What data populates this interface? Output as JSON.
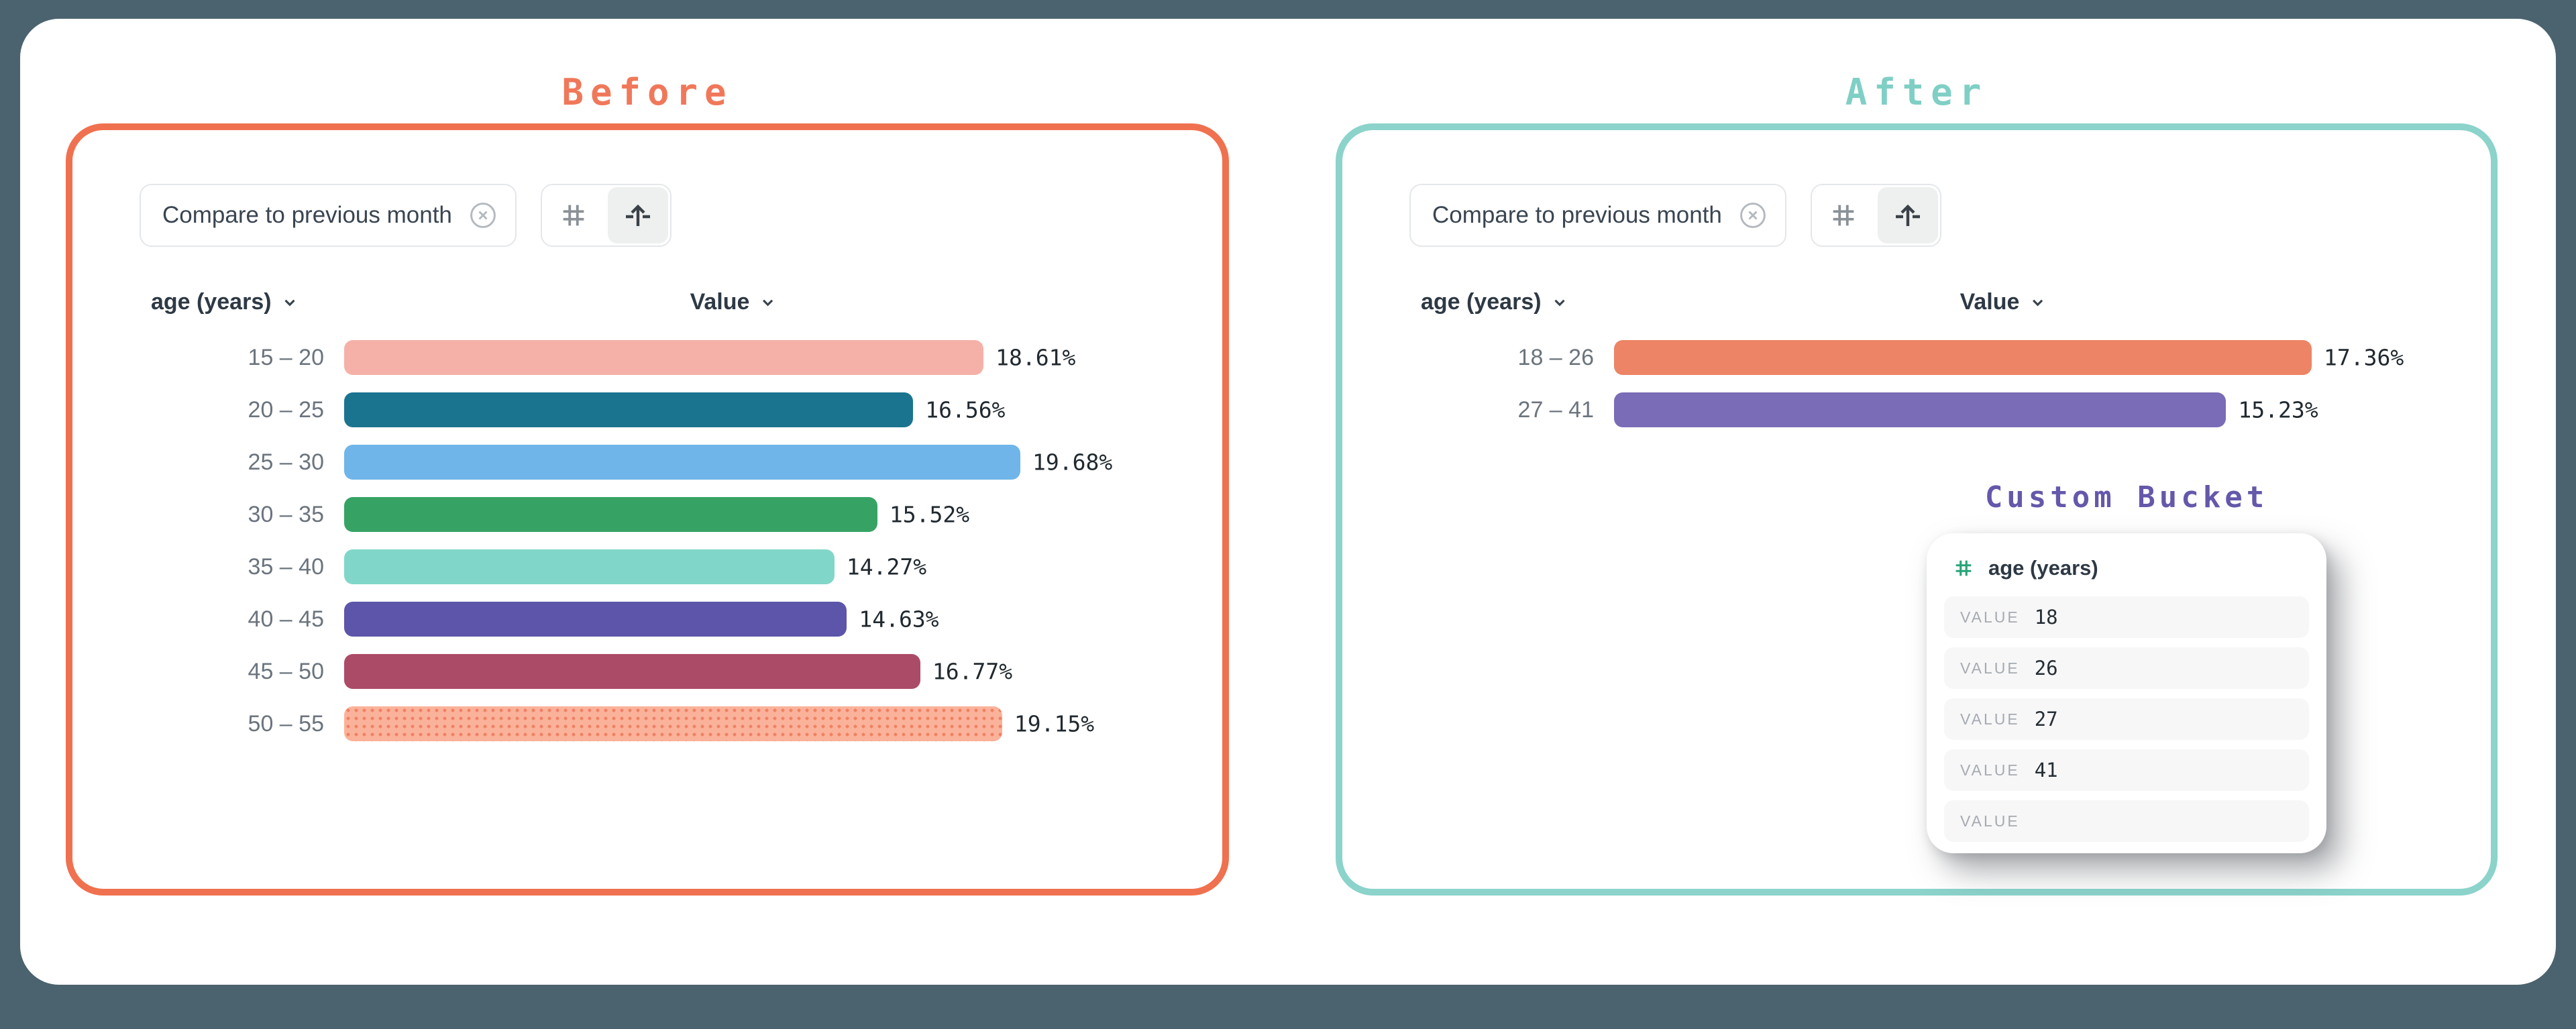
{
  "page": {
    "background": "#4B636E",
    "surface": "#FFFFFF"
  },
  "before": {
    "title": "Before",
    "accent": "#F0714F",
    "filter_chip": {
      "label": "Compare to previous month",
      "close_icon": "x-circle-icon"
    },
    "toolbar": {
      "buttons": [
        {
          "icon": "hash-grid-icon",
          "selected": false
        },
        {
          "icon": "pull-up-arrow-icon",
          "selected": true
        }
      ]
    },
    "columns": {
      "dimension": "age (years)",
      "measure": "Value"
    },
    "axis_max": 19.68,
    "rows": [
      {
        "range": "15 – 20",
        "value": 18.61,
        "value_label": "18.61%",
        "color": "#F5B1A8"
      },
      {
        "range": "20 – 25",
        "value": 16.56,
        "value_label": "16.56%",
        "color": "#1A7490"
      },
      {
        "range": "25 – 30",
        "value": 19.68,
        "value_label": "19.68%",
        "color": "#6FB5E9"
      },
      {
        "range": "30 – 35",
        "value": 15.52,
        "value_label": "15.52%",
        "color": "#36A365"
      },
      {
        "range": "35 – 40",
        "value": 14.27,
        "value_label": "14.27%",
        "color": "#80D7C9"
      },
      {
        "range": "40 – 45",
        "value": 14.63,
        "value_label": "14.63%",
        "color": "#5C55A9"
      },
      {
        "range": "45 – 50",
        "value": 16.77,
        "value_label": "16.77%",
        "color": "#AC4B67"
      },
      {
        "range": "50 – 55",
        "value": 19.15,
        "value_label": "19.15%",
        "color": "#FBB29A",
        "pattern": true
      }
    ]
  },
  "after": {
    "title": "After",
    "accent": "#8BD3CB",
    "filter_chip": {
      "label": "Compare to previous month",
      "close_icon": "x-circle-icon"
    },
    "toolbar": {
      "buttons": [
        {
          "icon": "hash-grid-icon",
          "selected": false
        },
        {
          "icon": "pull-up-arrow-icon",
          "selected": true
        }
      ]
    },
    "columns": {
      "dimension": "age (years)",
      "measure": "Value"
    },
    "axis_max": 17.36,
    "rows": [
      {
        "range": "18 – 26",
        "value": 17.36,
        "value_label": "17.36%",
        "color": "#EC8465"
      },
      {
        "range": "27 – 41",
        "value": 15.23,
        "value_label": "15.23%",
        "color": "#7A6CB6"
      }
    ],
    "custom_bucket": {
      "title": "Custom Bucket",
      "title_color": "#6458AB",
      "field": {
        "icon": "hash-grid-icon",
        "icon_color": "#27A377",
        "label": "age (years)"
      },
      "rows": [
        {
          "label": "VALUE",
          "value": "18"
        },
        {
          "label": "VALUE",
          "value": "26"
        },
        {
          "label": "VALUE",
          "value": "27"
        },
        {
          "label": "VALUE",
          "value": "41"
        },
        {
          "label": "VALUE",
          "value": ""
        }
      ]
    }
  },
  "chart_data": [
    {
      "type": "bar",
      "orientation": "horizontal",
      "title": "Before",
      "categories": [
        "15 – 20",
        "20 – 25",
        "25 – 30",
        "30 – 35",
        "35 – 40",
        "40 – 45",
        "45 – 50",
        "50 – 55"
      ],
      "values": [
        18.61,
        16.56,
        19.68,
        15.52,
        14.27,
        14.63,
        16.77,
        19.15
      ],
      "unit": "%",
      "xlabel": "Value",
      "ylabel": "age (years)",
      "xlim": [
        0,
        19.68
      ],
      "grid": false,
      "legend": false,
      "bar_colors": [
        "#F5B1A8",
        "#1A7490",
        "#6FB5E9",
        "#36A365",
        "#80D7C9",
        "#5C55A9",
        "#AC4B67",
        "#FBB29A"
      ]
    },
    {
      "type": "bar",
      "orientation": "horizontal",
      "title": "After",
      "categories": [
        "18 – 26",
        "27 – 41"
      ],
      "values": [
        17.36,
        15.23
      ],
      "unit": "%",
      "xlabel": "Value",
      "ylabel": "age (years)",
      "xlim": [
        0,
        17.36
      ],
      "grid": false,
      "legend": false,
      "bar_colors": [
        "#EC8465",
        "#7A6CB6"
      ]
    }
  ]
}
